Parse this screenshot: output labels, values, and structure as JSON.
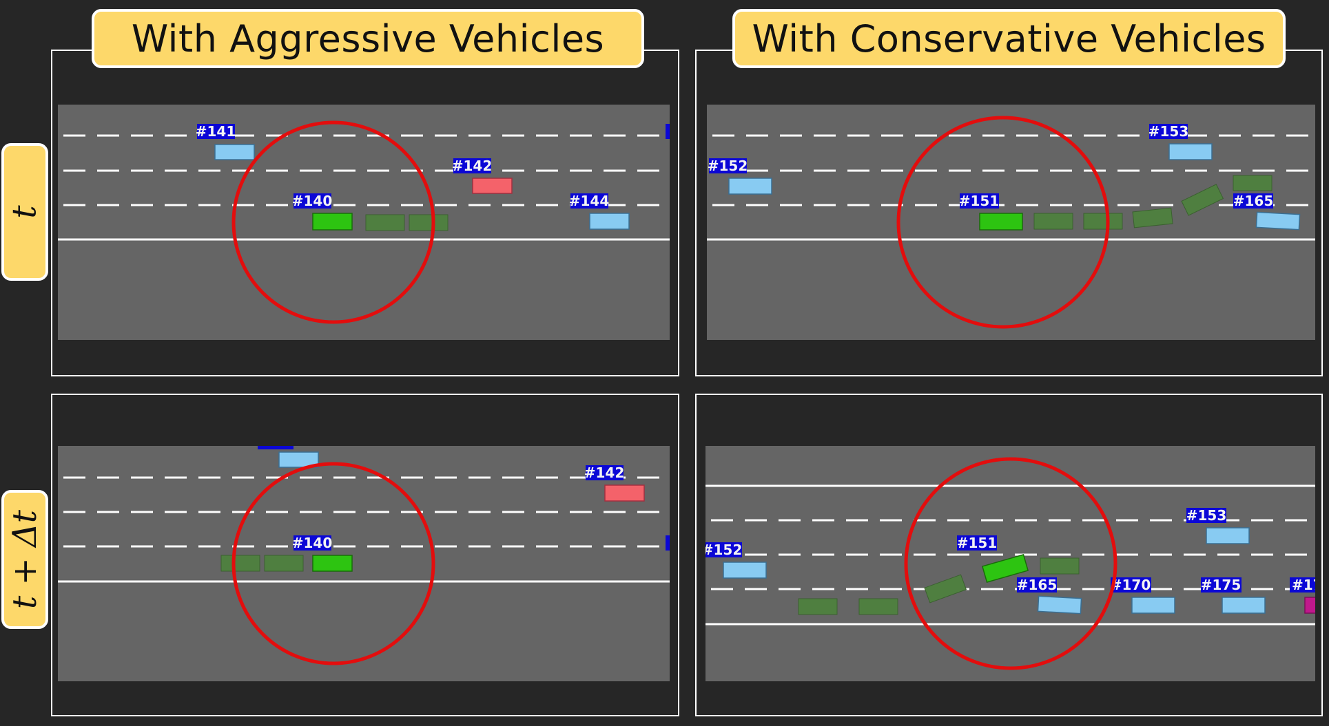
{
  "columns": {
    "aggressive": "With Aggressive Vehicles",
    "conservative": "With Conservative Vehicles"
  },
  "rows": {
    "t": "t",
    "t_dt": "t + Δt"
  },
  "colors": {
    "background": "#262626",
    "road": "#656565",
    "label_bg": "#0b07d6",
    "ego": "#2dc411",
    "ghost": "#4f7f40",
    "other": "#88cbf2",
    "aggressive_vehicle": "#f4626a",
    "circle": "#e30d0d",
    "title_bg": "#fdd86a"
  },
  "panels": [
    {
      "name": "aggressive-t",
      "vehicles": [
        {
          "id": "141",
          "label": "#141",
          "kind": "other"
        },
        {
          "id": "142",
          "label": "#142",
          "kind": "aggressive"
        },
        {
          "id": "140",
          "label": "#140",
          "kind": "ego"
        },
        {
          "id": "144",
          "label": "#144",
          "kind": "other"
        }
      ]
    },
    {
      "name": "conservative-t",
      "vehicles": [
        {
          "id": "152",
          "label": "#152",
          "kind": "other"
        },
        {
          "id": "153",
          "label": "#153",
          "kind": "other"
        },
        {
          "id": "151",
          "label": "#151",
          "kind": "ego"
        },
        {
          "id": "165",
          "label": "#165",
          "kind": "other"
        }
      ]
    },
    {
      "name": "aggressive-t-dt",
      "vehicles": [
        {
          "id": "142",
          "label": "#142",
          "kind": "aggressive"
        },
        {
          "id": "140",
          "label": "#140",
          "kind": "ego"
        }
      ]
    },
    {
      "name": "conservative-t-dt",
      "vehicles": [
        {
          "id": "152",
          "label": "#152",
          "kind": "other"
        },
        {
          "id": "153",
          "label": "#153",
          "kind": "other"
        },
        {
          "id": "151",
          "label": "#151",
          "kind": "ego"
        },
        {
          "id": "165",
          "label": "#165",
          "kind": "other"
        },
        {
          "id": "170",
          "label": "#170",
          "kind": "other"
        },
        {
          "id": "175",
          "label": "#175",
          "kind": "other"
        },
        {
          "id": "17",
          "label": "#17",
          "kind": "other"
        }
      ]
    }
  ]
}
